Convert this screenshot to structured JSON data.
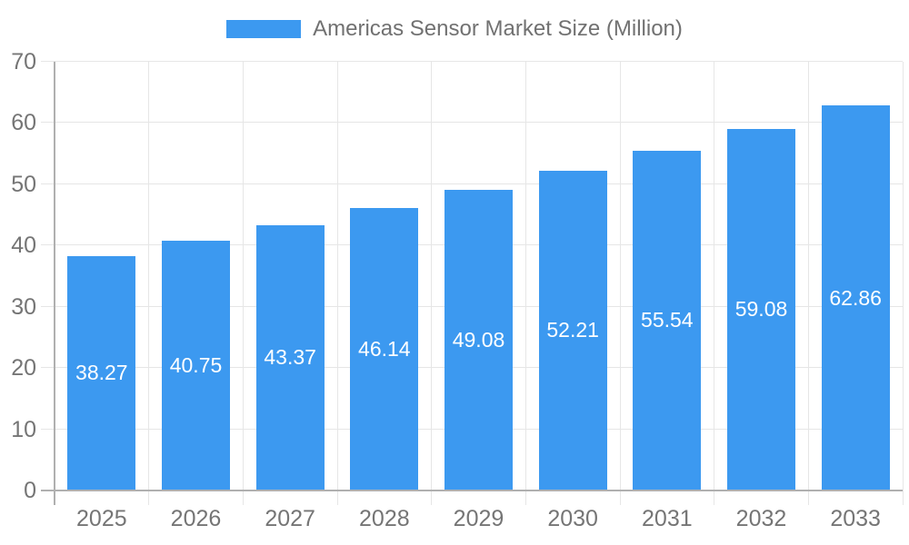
{
  "legend": {
    "label": "Americas Sensor Market Size (Million)"
  },
  "chart_data": {
    "type": "bar",
    "title": "Americas Sensor Market Size (Million)",
    "categories": [
      "2025",
      "2026",
      "2027",
      "2028",
      "2029",
      "2030",
      "2031",
      "2032",
      "2033"
    ],
    "series": [
      {
        "name": "Americas Sensor Market Size (Million)",
        "values": [
          38.27,
          40.75,
          43.37,
          46.14,
          49.08,
          52.21,
          55.54,
          59.08,
          62.86
        ]
      }
    ],
    "value_labels": [
      "38.27",
      "40.75",
      "43.37",
      "46.14",
      "49.08",
      "52.21",
      "55.54",
      "59.08",
      "62.86"
    ],
    "xlabel": "",
    "ylabel": "",
    "ylim": [
      0,
      70
    ],
    "yticks": [
      0,
      10,
      20,
      30,
      40,
      50,
      60,
      70
    ],
    "grid": true,
    "legend_position": "top-center",
    "value_label_position": "inside-center"
  },
  "style": {
    "bar_color": "#3c99f0",
    "grid_color": "#e6e6e6",
    "axis_line_color": "#b0b0b0",
    "axis_text_color": "#757575",
    "title_color": "#717171",
    "value_label_color": "#ffffff",
    "background": "#ffffff"
  }
}
